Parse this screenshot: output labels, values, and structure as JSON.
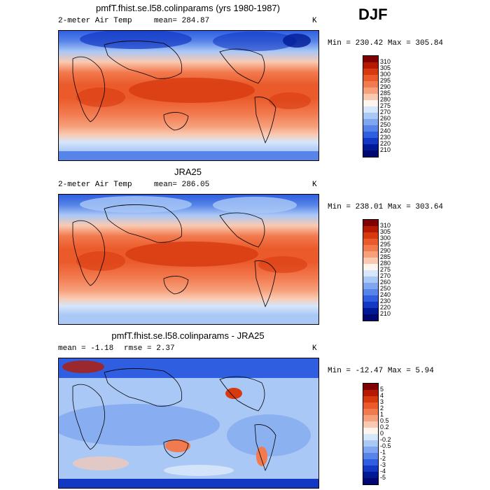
{
  "season": "DJF",
  "panels": [
    {
      "title": "pmfT.fhist.se.l58.colinparams (yrs 1980-1987)",
      "left_label": "2-meter Air Temp",
      "center_label": "mean= 284.87",
      "unit": "K",
      "minmax": "Min = 230.42 Max = 305.84",
      "kind": "abs",
      "cbar_levels": [
        "310",
        "305",
        "300",
        "295",
        "290",
        "285",
        "280",
        "275",
        "270",
        "260",
        "250",
        "240",
        "230",
        "220",
        "210"
      ],
      "cbar_colors": [
        "#7f0000",
        "#b51a00",
        "#d83a10",
        "#ea5a2a",
        "#f27a4f",
        "#f6a07c",
        "#fac9b0",
        "#fff5ef",
        "#d6e6fb",
        "#aac8f6",
        "#7fa6ef",
        "#5784e8",
        "#2f5fe0",
        "#1238c4",
        "#001a96",
        "#000870"
      ]
    },
    {
      "title": "JRA25",
      "left_label": "2-meter Air Temp",
      "center_label": "mean= 286.05",
      "unit": "K",
      "minmax": "Min = 238.01 Max = 303.64",
      "kind": "abs",
      "cbar_levels": [
        "310",
        "305",
        "300",
        "295",
        "290",
        "285",
        "280",
        "275",
        "270",
        "260",
        "250",
        "240",
        "230",
        "220",
        "210"
      ],
      "cbar_colors": [
        "#7f0000",
        "#b51a00",
        "#d83a10",
        "#ea5a2a",
        "#f27a4f",
        "#f6a07c",
        "#fac9b0",
        "#fff5ef",
        "#d6e6fb",
        "#aac8f6",
        "#7fa6ef",
        "#5784e8",
        "#2f5fe0",
        "#1238c4",
        "#001a96",
        "#000870"
      ]
    },
    {
      "title": "pmfT.fhist.se.l58.colinparams - JRA25",
      "left_label": "mean =   -1.18",
      "center_label": "rmse =    2.37",
      "unit": "K",
      "minmax": "Min = -12.47 Max =    5.94",
      "kind": "diff",
      "cbar_levels": [
        "5",
        "4",
        "3",
        "2",
        "1",
        "0.5",
        "0.2",
        "0",
        "-0.2",
        "-0.5",
        "-1",
        "-2",
        "-3",
        "-4",
        "-5"
      ],
      "cbar_colors": [
        "#7f0000",
        "#b51a00",
        "#d83a10",
        "#ea5a2a",
        "#f27a4f",
        "#f6a07c",
        "#fac9b0",
        "#fff5ef",
        "#d6e6fb",
        "#aac8f6",
        "#7fa6ef",
        "#5784e8",
        "#2f5fe0",
        "#1238c4",
        "#001a96",
        "#000870"
      ]
    }
  ],
  "chart_data": [
    {
      "type": "heatmap",
      "title": "pmfT.fhist.se.l58.colinparams (yrs 1980-1987)",
      "variable": "2-meter Air Temp",
      "units": "K",
      "mean": 284.87,
      "min": 230.42,
      "max": 305.84,
      "contour_levels": [
        210,
        220,
        230,
        240,
        250,
        260,
        270,
        275,
        280,
        285,
        290,
        295,
        300,
        305,
        310
      ]
    },
    {
      "type": "heatmap",
      "title": "JRA25",
      "variable": "2-meter Air Temp",
      "units": "K",
      "mean": 286.05,
      "min": 238.01,
      "max": 303.64,
      "contour_levels": [
        210,
        220,
        230,
        240,
        250,
        260,
        270,
        275,
        280,
        285,
        290,
        295,
        300,
        305,
        310
      ]
    },
    {
      "type": "heatmap",
      "title": "pmfT.fhist.se.l58.colinparams - JRA25",
      "units": "K",
      "mean": -1.18,
      "rmse": 2.37,
      "min": -12.47,
      "max": 5.94,
      "contour_levels": [
        -5,
        -4,
        -3,
        -2,
        -1,
        -0.5,
        -0.2,
        0,
        0.2,
        0.5,
        1,
        2,
        3,
        4,
        5
      ]
    }
  ]
}
